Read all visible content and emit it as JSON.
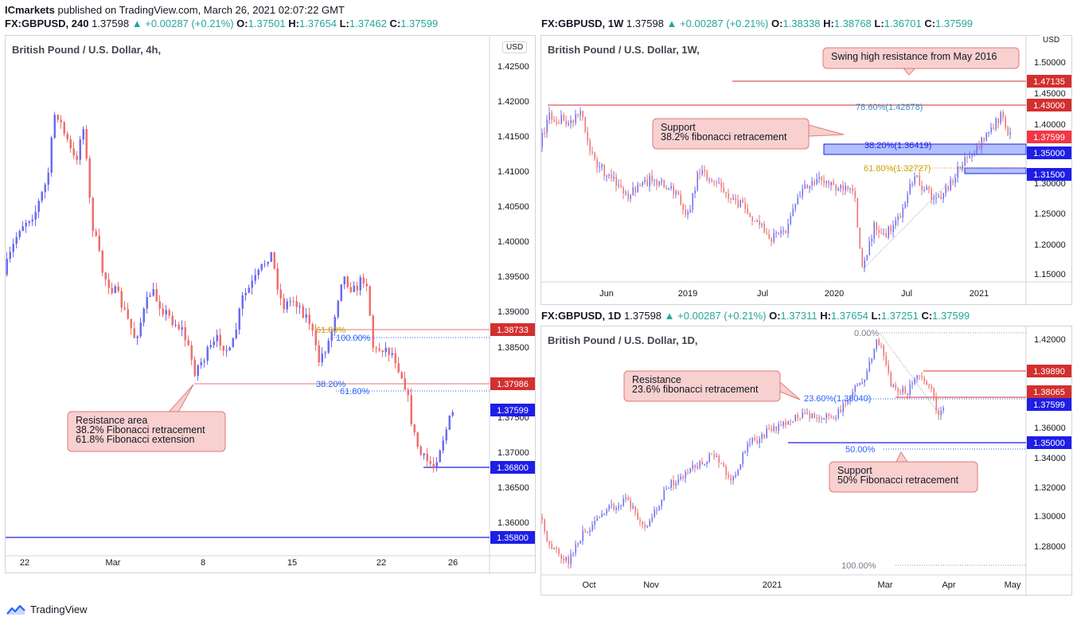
{
  "publisher_line": {
    "brand": "ICmarkets",
    "text": " published on TradingView.com, March 26, 2021 02:07:22 GMT"
  },
  "footer": {
    "brand": "TradingView"
  },
  "colors": {
    "up": "#6c6cf0",
    "down": "#ef6f6f",
    "red_line": "#d32f2f",
    "blue_line": "#1e1ee6",
    "callout_bg": "#f8d0d0",
    "callout_border": "#e07a7a",
    "fib_gold": "#c8a000",
    "fib_blue": "#2962ff"
  },
  "panel_4h": {
    "symbol_line": {
      "sym": "FX:GBPUSD, 240",
      "last": "1.37598",
      "arrow": "▲",
      "chg": "+0.00287 (+0.21%)",
      "o": "1.37501",
      "h": "1.37654",
      "l": "1.37462",
      "c": "1.37599"
    },
    "title": "British Pound / U.S. Dollar, 4h,",
    "currency": "USD",
    "y_ticks": [
      "1.42500",
      "1.42000",
      "1.41500",
      "1.41000",
      "1.40500",
      "1.40000",
      "1.39500",
      "1.39000",
      "1.38500",
      "1.37500",
      "1.37000",
      "1.36500",
      "1.36000"
    ],
    "x_ticks": [
      "22",
      "Mar",
      "8",
      "15",
      "22",
      "26"
    ],
    "price_labels": [
      {
        "text": "1.38733",
        "kind": "red"
      },
      {
        "text": "1.37986",
        "kind": "red"
      },
      {
        "text": "1.37599",
        "kind": "blue"
      },
      {
        "text": "1.36800",
        "kind": "blue"
      },
      {
        "text": "1.35800",
        "kind": "blue"
      }
    ],
    "fib_labels": [
      {
        "text": "61.80%",
        "kind": "gold"
      },
      {
        "text": "100.00%",
        "kind": "blue"
      },
      {
        "text": "38.20%",
        "kind": "blue"
      },
      {
        "text": "61.80%",
        "kind": "blue"
      }
    ],
    "callout": [
      "Resistance area",
      "38.2% Fibonacci retracement",
      "61.8% Fibonacci extension"
    ]
  },
  "panel_1w": {
    "symbol_line": {
      "sym": "FX:GBPUSD, 1W",
      "last": "1.37598",
      "arrow": "▲",
      "chg": "+0.00287 (+0.21%)",
      "o": "1.38338",
      "h": "1.38768",
      "l": "1.36701",
      "c": "1.37599"
    },
    "title": "British Pound / U.S. Dollar, 1W,",
    "currency": "USD",
    "y_ticks": [
      "1.50000",
      "1.45000",
      "1.40000",
      "1.30000",
      "1.25000",
      "1.20000",
      "1.15000"
    ],
    "x_ticks": [
      "Jun",
      "2019",
      "Jul",
      "2020",
      "Jul",
      "2021"
    ],
    "price_labels": [
      {
        "text": "1.47135",
        "kind": "red"
      },
      {
        "text": "1.43000",
        "kind": "red"
      },
      {
        "text": "1.37599",
        "kind": "redbright"
      },
      {
        "text": "1.35000",
        "kind": "blue"
      },
      {
        "text": "1.31500",
        "kind": "blue"
      }
    ],
    "fib_labels": [
      {
        "text": "78.60%(1.42878)",
        "kind": "teal"
      },
      {
        "text": "38.20%(1.36419)",
        "kind": "blue"
      },
      {
        "text": "61.80%(1.32727)",
        "kind": "gold"
      }
    ],
    "callout_top": [
      "Swing high resistance from May 2016"
    ],
    "callout_support": [
      "Support",
      "38.2% fibonacci retracement"
    ]
  },
  "panel_1d": {
    "symbol_line": {
      "sym": "FX:GBPUSD, 1D",
      "last": "1.37598",
      "arrow": "▲",
      "chg": "+0.00287 (+0.21%)",
      "o": "1.37311",
      "h": "1.37654",
      "l": "1.37251",
      "c": "1.37599"
    },
    "title": "British Pound / U.S. Dollar, 1D,",
    "y_ticks": [
      "1.42000",
      "1.40000",
      "1.36000",
      "1.34000",
      "1.32000",
      "1.30000",
      "1.28000"
    ],
    "x_ticks": [
      "Oct",
      "Nov",
      "2021",
      "Mar",
      "Apr",
      "May"
    ],
    "price_labels": [
      {
        "text": "1.39890",
        "kind": "red"
      },
      {
        "text": "1.38065",
        "kind": "red"
      },
      {
        "text": "1.37599",
        "kind": "blue"
      },
      {
        "text": "1.35000",
        "kind": "blue"
      }
    ],
    "fib_labels": [
      {
        "text": "0.00%",
        "kind": "gray"
      },
      {
        "text": "23.60%(1.38040)",
        "kind": "blue"
      },
      {
        "text": "50.00%",
        "kind": "blue"
      },
      {
        "text": "100.00%",
        "kind": "gray"
      }
    ],
    "callout_res": [
      "Resistance",
      "23.6% fibonacci retracement"
    ],
    "callout_sup": [
      "Support",
      "50% Fibonacci retracement"
    ]
  }
}
